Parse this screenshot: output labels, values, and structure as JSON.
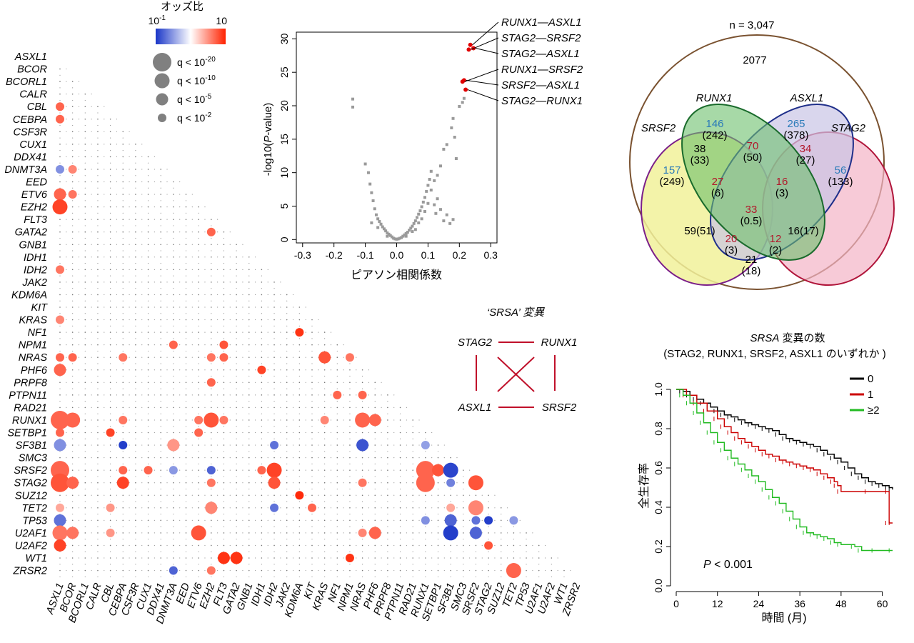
{
  "correlation": {
    "genes": [
      "ASXL1",
      "BCOR",
      "BCORL1",
      "CALR",
      "CBL",
      "CEBPA",
      "CSF3R",
      "CUX1",
      "DDX41",
      "DNMT3A",
      "EED",
      "ETV6",
      "EZH2",
      "FLT3",
      "GATA2",
      "GNB1",
      "IDH1",
      "IDH2",
      "JAK2",
      "KDM6A",
      "KIT",
      "KRAS",
      "NF1",
      "NPM1",
      "NRAS",
      "PHF6",
      "PRPF8",
      "PTPN11",
      "RAD21",
      "RUNX1",
      "SETBP1",
      "SF3B1",
      "SMC3",
      "SRSF2",
      "STAG2",
      "SUZ12",
      "TET2",
      "TP53",
      "U2AF1",
      "U2AF2",
      "WT1",
      "ZRSR2"
    ],
    "legend_title": "オッズ比",
    "scale_low": "10",
    "scale_low_exp": "-1",
    "scale_high": "10",
    "size_labels": [
      {
        "base": "q < 10",
        "exp": "-20",
        "level": 4
      },
      {
        "base": "q < 10",
        "exp": "-10",
        "level": 3
      },
      {
        "base": "q < 10",
        "exp": "-5",
        "level": 2
      },
      {
        "base": "q < 10",
        "exp": "-2",
        "level": 1
      }
    ],
    "colors": {
      "low": "#1a36c8",
      "mid": "#ffffff",
      "high": "#ff2200"
    },
    "cells": [
      [
        "CBL",
        "ASXL1",
        1,
        0.6
      ],
      [
        "CEBPA",
        "ASXL1",
        1,
        0.6
      ],
      [
        "DNMT3A",
        "ASXL1",
        1,
        -0.4
      ],
      [
        "DNMT3A",
        "BCOR",
        1,
        0.4
      ],
      [
        "ETV6",
        "ASXL1",
        2,
        0.6
      ],
      [
        "ETV6",
        "BCOR",
        1,
        0.5
      ],
      [
        "EZH2",
        "ASXL1",
        3,
        0.8
      ],
      [
        "GATA2",
        "EZH2",
        1,
        0.6
      ],
      [
        "IDH2",
        "ASXL1",
        1,
        0.5
      ],
      [
        "KRAS",
        "ASXL1",
        1,
        0.4
      ],
      [
        "NF1",
        "KDM6A",
        1,
        0.9
      ],
      [
        "NPM1",
        "DNMT3A",
        1,
        0.6
      ],
      [
        "NPM1",
        "FLT3",
        1,
        0.7
      ],
      [
        "NRAS",
        "ASXL1",
        1,
        0.6
      ],
      [
        "NRAS",
        "BCOR",
        1,
        0.6
      ],
      [
        "NRAS",
        "CEBPA",
        1,
        0.5
      ],
      [
        "NRAS",
        "EZH2",
        1,
        0.5
      ],
      [
        "NRAS",
        "FLT3",
        1,
        0.6
      ],
      [
        "NRAS",
        "KRAS",
        2,
        0.7
      ],
      [
        "NRAS",
        "NPM1",
        1,
        0.5
      ],
      [
        "PHF6",
        "ASXL1",
        2,
        0.6
      ],
      [
        "PHF6",
        "IDH1",
        1,
        0.8
      ],
      [
        "PRPF8",
        "EZH2",
        1,
        0.6
      ],
      [
        "PTPN11",
        "NF1",
        1,
        0.6
      ],
      [
        "PTPN11",
        "NRAS",
        1,
        0.6
      ],
      [
        "RUNX1",
        "ASXL1",
        4,
        0.6
      ],
      [
        "RUNX1",
        "BCOR",
        3,
        0.6
      ],
      [
        "RUNX1",
        "CEBPA",
        1,
        0.5
      ],
      [
        "RUNX1",
        "ETV6",
        1,
        0.5
      ],
      [
        "RUNX1",
        "EZH2",
        3,
        0.7
      ],
      [
        "RUNX1",
        "FLT3",
        1,
        0.5
      ],
      [
        "RUNX1",
        "KRAS",
        1,
        0.4
      ],
      [
        "RUNX1",
        "NRAS",
        3,
        0.6
      ],
      [
        "RUNX1",
        "PHF6",
        2,
        0.6
      ],
      [
        "SETBP1",
        "ASXL1",
        1,
        0.6
      ],
      [
        "SETBP1",
        "CBL",
        1,
        0.8
      ],
      [
        "SETBP1",
        "ETV6",
        1,
        0.6
      ],
      [
        "SF3B1",
        "ASXL1",
        2,
        -0.4
      ],
      [
        "SF3B1",
        "CEBPA",
        1,
        -0.95
      ],
      [
        "SF3B1",
        "DNMT3A",
        2,
        0.3
      ],
      [
        "SF3B1",
        "IDH2",
        1,
        -0.6
      ],
      [
        "SF3B1",
        "NRAS",
        2,
        -0.8
      ],
      [
        "SF3B1",
        "RUNX1",
        1,
        -0.3
      ],
      [
        "SRSF2",
        "ASXL1",
        4,
        0.6
      ],
      [
        "SRSF2",
        "CEBPA",
        1,
        0.6
      ],
      [
        "SRSF2",
        "CUX1",
        1,
        0.6
      ],
      [
        "SRSF2",
        "DNMT3A",
        1,
        -0.35
      ],
      [
        "SRSF2",
        "EZH2",
        1,
        -0.7
      ],
      [
        "SRSF2",
        "IDH1",
        1,
        0.6
      ],
      [
        "SRSF2",
        "IDH2",
        3,
        0.8
      ],
      [
        "SRSF2",
        "RUNX1",
        4,
        0.6
      ],
      [
        "SRSF2",
        "SETBP1",
        2,
        0.7
      ],
      [
        "SRSF2",
        "SF3B1",
        3,
        -0.9
      ],
      [
        "STAG2",
        "ASXL1",
        4,
        0.7
      ],
      [
        "STAG2",
        "BCOR",
        2,
        0.6
      ],
      [
        "STAG2",
        "CEBPA",
        2,
        0.8
      ],
      [
        "STAG2",
        "EZH2",
        1,
        0.5
      ],
      [
        "STAG2",
        "IDH2",
        2,
        0.7
      ],
      [
        "STAG2",
        "NRAS",
        1,
        0.5
      ],
      [
        "STAG2",
        "RUNX1",
        4,
        0.6
      ],
      [
        "STAG2",
        "SF3B1",
        1,
        -0.5
      ],
      [
        "STAG2",
        "SRSF2",
        3,
        0.7
      ],
      [
        "SUZ12",
        "KDM6A",
        1,
        0.95
      ],
      [
        "TET2",
        "ASXL1",
        1,
        0.2
      ],
      [
        "TET2",
        "CBL",
        1,
        0.3
      ],
      [
        "TET2",
        "EZH2",
        2,
        0.4
      ],
      [
        "TET2",
        "IDH2",
        1,
        -0.6
      ],
      [
        "TET2",
        "KIT",
        1,
        0.6
      ],
      [
        "TET2",
        "SF3B1",
        1,
        0.2
      ],
      [
        "TET2",
        "SRSF2",
        3,
        0.4
      ],
      [
        "TP53",
        "ASXL1",
        2,
        -0.6
      ],
      [
        "TP53",
        "RUNX1",
        1,
        -0.4
      ],
      [
        "TP53",
        "SF3B1",
        2,
        -0.7
      ],
      [
        "TP53",
        "SRSF2",
        1,
        -0.6
      ],
      [
        "TP53",
        "STAG2",
        1,
        -0.95
      ],
      [
        "TP53",
        "TET2",
        1,
        -0.35
      ],
      [
        "U2AF1",
        "ASXL1",
        3,
        0.5
      ],
      [
        "U2AF1",
        "BCOR",
        2,
        0.5
      ],
      [
        "U2AF1",
        "CBL",
        1,
        0.3
      ],
      [
        "U2AF1",
        "ETV6",
        3,
        0.7
      ],
      [
        "U2AF1",
        "NRAS",
        1,
        0.4
      ],
      [
        "U2AF1",
        "PHF6",
        2,
        0.6
      ],
      [
        "U2AF1",
        "SF3B1",
        3,
        -0.95
      ],
      [
        "U2AF1",
        "SRSF2",
        2,
        -0.7
      ],
      [
        "U2AF2",
        "ASXL1",
        2,
        0.8
      ],
      [
        "U2AF2",
        "STAG2",
        1,
        0.7
      ],
      [
        "WT1",
        "FLT3",
        2,
        0.9
      ],
      [
        "WT1",
        "GATA2",
        2,
        0.9
      ],
      [
        "WT1",
        "NPM1",
        1,
        0.9
      ],
      [
        "ZRSR2",
        "DNMT3A",
        1,
        -0.7
      ],
      [
        "ZRSR2",
        "EZH2",
        1,
        0.5
      ],
      [
        "ZRSR2",
        "TET2",
        3,
        0.6
      ]
    ]
  },
  "volcano": {
    "xlabel": "ピアソン相関係数",
    "ylabel": "-log10(P-value)",
    "xticks": [
      "-0.3",
      "-0.2",
      "-0.1",
      "0.0",
      "0.1",
      "0.2",
      "0.3"
    ],
    "yticks": [
      "0",
      "5",
      "10",
      "15",
      "20",
      "25",
      "30"
    ],
    "xlim": [
      -0.32,
      0.32
    ],
    "ylim": [
      -0.5,
      31
    ],
    "gray_points": [
      [
        -0.14,
        21
      ],
      [
        -0.14,
        19.8
      ],
      [
        -0.1,
        11.3
      ],
      [
        -0.09,
        10
      ],
      [
        -0.085,
        8.3
      ],
      [
        -0.08,
        7
      ],
      [
        -0.075,
        5.8
      ],
      [
        -0.07,
        4.6
      ],
      [
        -0.065,
        3.7
      ],
      [
        -0.06,
        3.1
      ],
      [
        -0.055,
        2.7
      ],
      [
        -0.05,
        2.3
      ],
      [
        -0.045,
        1.9
      ],
      [
        -0.04,
        1.6
      ],
      [
        -0.035,
        1.3
      ],
      [
        -0.03,
        1
      ],
      [
        -0.025,
        0.8
      ],
      [
        -0.02,
        0.6
      ],
      [
        -0.015,
        0.4
      ],
      [
        -0.01,
        0.2
      ],
      [
        -0.005,
        0.1
      ],
      [
        0,
        0.05
      ],
      [
        0.005,
        0.1
      ],
      [
        0.01,
        0.2
      ],
      [
        0.015,
        0.3
      ],
      [
        0.02,
        0.5
      ],
      [
        0.025,
        0.7
      ],
      [
        0.03,
        0.9
      ],
      [
        0.035,
        1.1
      ],
      [
        0.04,
        1.4
      ],
      [
        0.045,
        1.7
      ],
      [
        0.05,
        2
      ],
      [
        0.055,
        2.4
      ],
      [
        0.06,
        2.8
      ],
      [
        0.065,
        3.3
      ],
      [
        0.07,
        3.8
      ],
      [
        0.075,
        4.3
      ],
      [
        0.08,
        4.9
      ],
      [
        0.085,
        5.6
      ],
      [
        0.09,
        6.3
      ],
      [
        0.095,
        7.2
      ],
      [
        0.1,
        8.1
      ],
      [
        0.105,
        9
      ],
      [
        0.11,
        10.2
      ],
      [
        0.12,
        5.2
      ],
      [
        0.125,
        3.9
      ],
      [
        0.13,
        6.1
      ],
      [
        0.14,
        4.5
      ],
      [
        0.15,
        2.8
      ],
      [
        0.16,
        3.7
      ],
      [
        0.17,
        2.4
      ],
      [
        0.18,
        3
      ],
      [
        0.19,
        12.1
      ],
      [
        0.185,
        15.3
      ],
      [
        0.175,
        16.7
      ],
      [
        0.18,
        18.1
      ],
      [
        0.2,
        19.9
      ],
      [
        0.21,
        20.5
      ],
      [
        0.215,
        21.1
      ],
      [
        0.03,
        0.5
      ],
      [
        0.05,
        1.2
      ],
      [
        0.07,
        2.5
      ],
      [
        0.09,
        4.2
      ],
      [
        0.1,
        5.4
      ],
      [
        -0.03,
        0.5
      ],
      [
        -0.06,
        1.8
      ],
      [
        -0.08,
        2.5
      ],
      [
        0.06,
        1.5
      ],
      [
        0.08,
        3.1
      ],
      [
        0.11,
        7.4
      ],
      [
        0.12,
        8.8
      ],
      [
        0.13,
        9.6
      ],
      [
        0.14,
        11
      ],
      [
        0.15,
        13.5
      ],
      [
        0.16,
        14.2
      ]
    ],
    "red_points": [
      {
        "label": "RUNX1—ASXL1",
        "x": 0.235,
        "y": 29.1
      },
      {
        "label": "STAG2—SRSF2",
        "x": 0.23,
        "y": 28.4
      },
      {
        "label": "STAG2—ASXL1",
        "x": 0.245,
        "y": 28.6
      },
      {
        "label": "RUNX1—SRSF2",
        "x": 0.21,
        "y": 23.6
      },
      {
        "label": "SRSF2—ASXL1",
        "x": 0.215,
        "y": 23.8
      },
      {
        "label": "STAG2—RUNX1",
        "x": 0.22,
        "y": 22.4
      }
    ]
  },
  "srsa": {
    "title": "‘SRSA’ 変異",
    "genes": [
      "STAG2",
      "RUNX1",
      "ASXL1",
      "SRSF2"
    ]
  },
  "venn": {
    "total": "n = 3,047",
    "outside": "2077",
    "sets": [
      "RUNX1",
      "ASXL1",
      "SRSF2",
      "STAG2"
    ],
    "regions": [
      {
        "v": "146",
        "e": "(242)",
        "c": "#2b7bb9"
      },
      {
        "v": "265",
        "e": "(378)",
        "c": "#2b7bb9"
      },
      {
        "v": "157",
        "e": "(249)",
        "c": "#2b7bb9"
      },
      {
        "v": "56",
        "e": "(133)",
        "c": "#2b7bb9"
      },
      {
        "v": "38",
        "e": "(33)",
        "c": "#000000"
      },
      {
        "v": "70",
        "e": "(50)",
        "c": "#b2182b"
      },
      {
        "v": "34",
        "e": "(27)",
        "c": "#b2182b"
      },
      {
        "v": "27",
        "e": "(6)",
        "c": "#b2182b"
      },
      {
        "v": "16",
        "e": "(3)",
        "c": "#b2182b"
      },
      {
        "v": "33",
        "e": "(0.5)",
        "c": "#b2182b"
      },
      {
        "v": "59(51)",
        "e": "",
        "c": "#000000"
      },
      {
        "v": "16(17)",
        "e": "",
        "c": "#000000"
      },
      {
        "v": "20",
        "e": "(3)",
        "c": "#b2182b"
      },
      {
        "v": "12",
        "e": "(2)",
        "c": "#b2182b"
      },
      {
        "v": "21",
        "e": "(18)",
        "c": "#000000"
      }
    ]
  },
  "km": {
    "title": "SRSA 変異の数",
    "subtitle": "(STAG2, RUNX1, SRSF2, ASXL1 のいずれか )",
    "ylabel": "全生存率",
    "xlabel": "時間 (月)",
    "xticks": [
      "0",
      "12",
      "24",
      "36",
      "48",
      "60"
    ],
    "yticks": [
      "0.0",
      "0.2",
      "0.4",
      "0.6",
      "0.8",
      "1.0"
    ],
    "pvalue_label": "P",
    "pvalue_rest": " < 0.001",
    "series": [
      {
        "name": "0",
        "color": "#000000",
        "points": [
          [
            0,
            1
          ],
          [
            2,
            0.99
          ],
          [
            4,
            0.97
          ],
          [
            6,
            0.95
          ],
          [
            8,
            0.93
          ],
          [
            10,
            0.91
          ],
          [
            12,
            0.89
          ],
          [
            14,
            0.87
          ],
          [
            16,
            0.86
          ],
          [
            18,
            0.845
          ],
          [
            20,
            0.83
          ],
          [
            22,
            0.82
          ],
          [
            24,
            0.81
          ],
          [
            26,
            0.8
          ],
          [
            28,
            0.79
          ],
          [
            30,
            0.77
          ],
          [
            32,
            0.75
          ],
          [
            34,
            0.74
          ],
          [
            36,
            0.73
          ],
          [
            38,
            0.72
          ],
          [
            40,
            0.71
          ],
          [
            42,
            0.69
          ],
          [
            44,
            0.67
          ],
          [
            46,
            0.65
          ],
          [
            48,
            0.63
          ],
          [
            50,
            0.6
          ],
          [
            52,
            0.57
          ],
          [
            54,
            0.55
          ],
          [
            56,
            0.53
          ],
          [
            58,
            0.52
          ],
          [
            60,
            0.51
          ],
          [
            62,
            0.5
          ],
          [
            63,
            0.49
          ]
        ]
      },
      {
        "name": "1",
        "color": "#cc0000",
        "points": [
          [
            0,
            1
          ],
          [
            3,
            0.97
          ],
          [
            6,
            0.93
          ],
          [
            9,
            0.89
          ],
          [
            12,
            0.85
          ],
          [
            14,
            0.81
          ],
          [
            16,
            0.78
          ],
          [
            18,
            0.75
          ],
          [
            20,
            0.73
          ],
          [
            22,
            0.71
          ],
          [
            24,
            0.69
          ],
          [
            26,
            0.67
          ],
          [
            28,
            0.66
          ],
          [
            30,
            0.64
          ],
          [
            32,
            0.63
          ],
          [
            34,
            0.62
          ],
          [
            36,
            0.61
          ],
          [
            38,
            0.6
          ],
          [
            40,
            0.59
          ],
          [
            42,
            0.57
          ],
          [
            44,
            0.55
          ],
          [
            46,
            0.53
          ],
          [
            47,
            0.51
          ],
          [
            48,
            0.48
          ],
          [
            56,
            0.48
          ],
          [
            62,
            0.48
          ],
          [
            62,
            0.32
          ],
          [
            63,
            0.32
          ]
        ]
      },
      {
        "name": "≥2",
        "color": "#22bb22",
        "points": [
          [
            0,
            1
          ],
          [
            2,
            0.97
          ],
          [
            4,
            0.93
          ],
          [
            6,
            0.88
          ],
          [
            8,
            0.83
          ],
          [
            10,
            0.78
          ],
          [
            12,
            0.73
          ],
          [
            14,
            0.69
          ],
          [
            16,
            0.65
          ],
          [
            18,
            0.62
          ],
          [
            20,
            0.59
          ],
          [
            22,
            0.56
          ],
          [
            24,
            0.53
          ],
          [
            26,
            0.49
          ],
          [
            28,
            0.45
          ],
          [
            30,
            0.42
          ],
          [
            32,
            0.38
          ],
          [
            34,
            0.34
          ],
          [
            36,
            0.3
          ],
          [
            38,
            0.27
          ],
          [
            40,
            0.26
          ],
          [
            42,
            0.25
          ],
          [
            44,
            0.24
          ],
          [
            46,
            0.22
          ],
          [
            48,
            0.21
          ],
          [
            52,
            0.2
          ],
          [
            54,
            0.18
          ],
          [
            58,
            0.18
          ],
          [
            63,
            0.18
          ]
        ]
      }
    ]
  }
}
